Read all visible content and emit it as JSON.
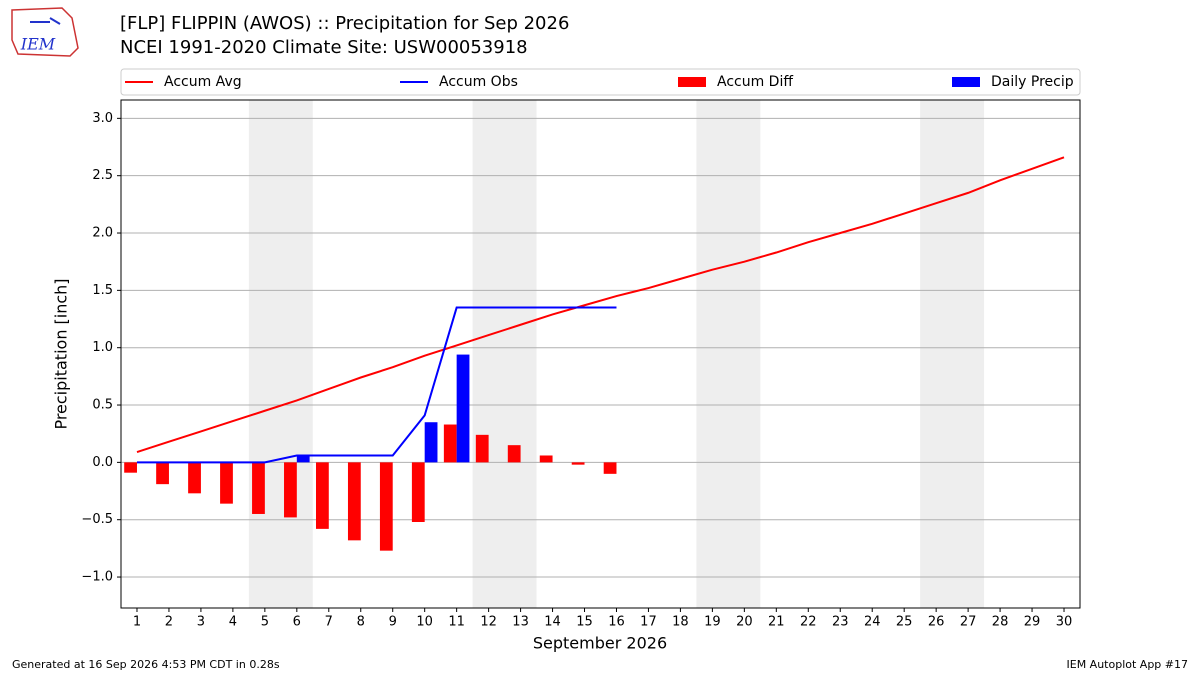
{
  "logo_text": "IEM",
  "chart_data": {
    "type": "bar-line",
    "title": "[FLP] FLIPPIN (AWOS) :: Precipitation for Sep 2026",
    "subtitle": "NCEI 1991-2020 Climate Site: USW00053918",
    "xlabel": "September 2026",
    "ylabel": "Precipitation [inch]",
    "x": [
      1,
      2,
      3,
      4,
      5,
      6,
      7,
      8,
      9,
      10,
      11,
      12,
      13,
      14,
      15,
      16,
      17,
      18,
      19,
      20,
      21,
      22,
      23,
      24,
      25,
      26,
      27,
      28,
      29,
      30
    ],
    "xlim": [
      0.5,
      30.5
    ],
    "xticks": [
      1,
      2,
      3,
      4,
      5,
      6,
      7,
      8,
      9,
      10,
      11,
      12,
      13,
      14,
      15,
      16,
      17,
      18,
      19,
      20,
      21,
      22,
      23,
      24,
      25,
      26,
      27,
      28,
      29,
      30
    ],
    "ylim": [
      -1.27,
      3.16
    ],
    "yticks": [
      {
        "value": -1,
        "label": "−1.0"
      },
      {
        "value": -0.5,
        "label": "−0.5"
      },
      {
        "value": 0,
        "label": "0.0"
      },
      {
        "value": 0.5,
        "label": "0.5"
      },
      {
        "value": 1,
        "label": "1.0"
      },
      {
        "value": 1.5,
        "label": "1.5"
      },
      {
        "value": 2,
        "label": "2.0"
      },
      {
        "value": 2.5,
        "label": "2.5"
      },
      {
        "value": 3,
        "label": "3.0"
      }
    ],
    "grid": true,
    "shaded_spans": [
      [
        4.5,
        6.5
      ],
      [
        11.5,
        13.5
      ],
      [
        18.5,
        20.5
      ],
      [
        25.5,
        27.5
      ]
    ],
    "series": [
      {
        "name": "Accum Avg",
        "kind": "line",
        "color": "#ff0000",
        "values": [
          0.09,
          0.18,
          0.27,
          0.36,
          0.45,
          0.54,
          0.64,
          0.74,
          0.83,
          0.93,
          1.02,
          1.11,
          1.2,
          1.29,
          1.37,
          1.45,
          1.52,
          1.6,
          1.68,
          1.75,
          1.83,
          1.92,
          2.0,
          2.08,
          2.17,
          2.26,
          2.35,
          2.46,
          2.56,
          2.66
        ]
      },
      {
        "name": "Accum Obs",
        "kind": "line",
        "color": "#0000ff",
        "values": [
          0,
          0,
          0,
          0,
          0,
          0.06,
          0.06,
          0.06,
          0.06,
          0.41,
          1.35,
          1.35,
          1.35,
          1.35,
          1.35,
          1.35,
          null,
          null,
          null,
          null,
          null,
          null,
          null,
          null,
          null,
          null,
          null,
          null,
          null,
          null
        ]
      },
      {
        "name": "Accum Diff",
        "kind": "bar",
        "color": "#ff0000",
        "offset": -0.2,
        "values": [
          -0.09,
          -0.19,
          -0.27,
          -0.36,
          -0.45,
          -0.48,
          -0.58,
          -0.68,
          -0.77,
          -0.52,
          0.33,
          0.24,
          0.15,
          0.06,
          -0.02,
          -0.1,
          null,
          null,
          null,
          null,
          null,
          null,
          null,
          null,
          null,
          null,
          null,
          null,
          null,
          null
        ]
      },
      {
        "name": "Daily Precip",
        "kind": "bar",
        "color": "#0000ff",
        "offset": 0.2,
        "values": [
          0,
          0,
          0,
          0,
          0,
          0.06,
          0,
          0,
          0,
          0.35,
          0.94,
          0,
          0,
          0,
          0,
          0,
          null,
          null,
          null,
          null,
          null,
          null,
          null,
          null,
          null,
          null,
          null,
          null,
          null,
          null
        ]
      }
    ],
    "footer_left": "Generated at 16 Sep 2026 4:53 PM CDT in 0.28s",
    "footer_right": "IEM Autoplot App #17"
  }
}
